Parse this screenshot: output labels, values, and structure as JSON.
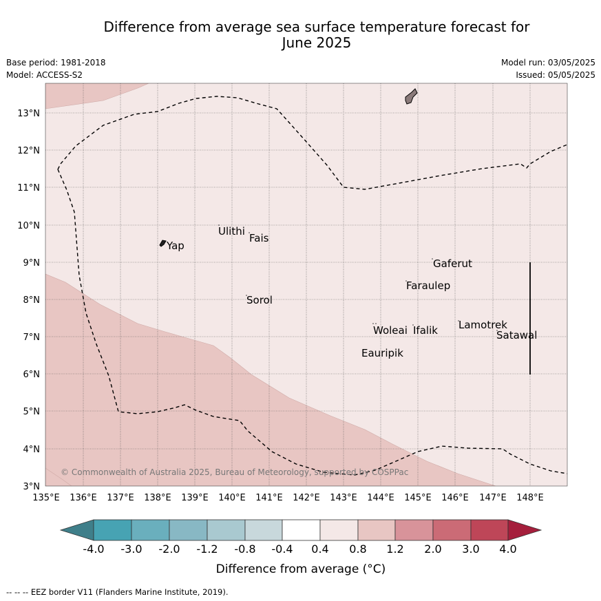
{
  "title_line1": "Difference from average sea surface temperature forecast for",
  "title_line2": "June 2025",
  "base_period": "Base period: 1981-2018",
  "model": "Model: ACCESS-S2",
  "model_run": "Model run: 03/05/2025",
  "issued": "Issued: 05/05/2025",
  "lat_labels": [
    "13°N",
    "12°N",
    "11°N",
    "10°N",
    "9°N",
    "8°N",
    "7°N",
    "6°N",
    "5°N",
    "4°N",
    "3°N"
  ],
  "lon_labels": [
    "135°E",
    "136°E",
    "137°E",
    "138°E",
    "139°E",
    "140°E",
    "141°E",
    "142°E",
    "143°E",
    "144°E",
    "145°E",
    "146°E",
    "147°E",
    "148°E"
  ],
  "places": [
    "Ulithi",
    "Fais",
    "Yap",
    "Gaferut",
    "Faraulep",
    "Sorol",
    "Lamotrek",
    "Woleai",
    "Ifalik",
    "Satawal",
    "Eauripik"
  ],
  "copyright": "© Commonwealth of Australia 2025, Bureau of Meteorology, supported by COSPPac",
  "colorbar": {
    "ticks": [
      "-4.0",
      "-3.0",
      "-2.0",
      "-1.2",
      "-0.8",
      "-0.4",
      "0.4",
      "0.8",
      "1.2",
      "2.0",
      "3.0",
      "4.0"
    ],
    "colors": [
      "#3f7f8a",
      "#47a3b3",
      "#6aafbd",
      "#88b8c4",
      "#a9c9d0",
      "#c8d8dc",
      "#ffffff",
      "#f4e8e7",
      "#e8c6c3",
      "#d8939a",
      "#cb6b76",
      "#be4658",
      "#a51f3c"
    ],
    "label": "Difference from average (°C)"
  },
  "map_colors": {
    "band_0_4_0_8": "#f4e8e7",
    "band_0_8_1_2": "#e8c6c3"
  },
  "footer": "--  --  -- EEZ border V11 (Flanders Marine Institute, 2019)."
}
